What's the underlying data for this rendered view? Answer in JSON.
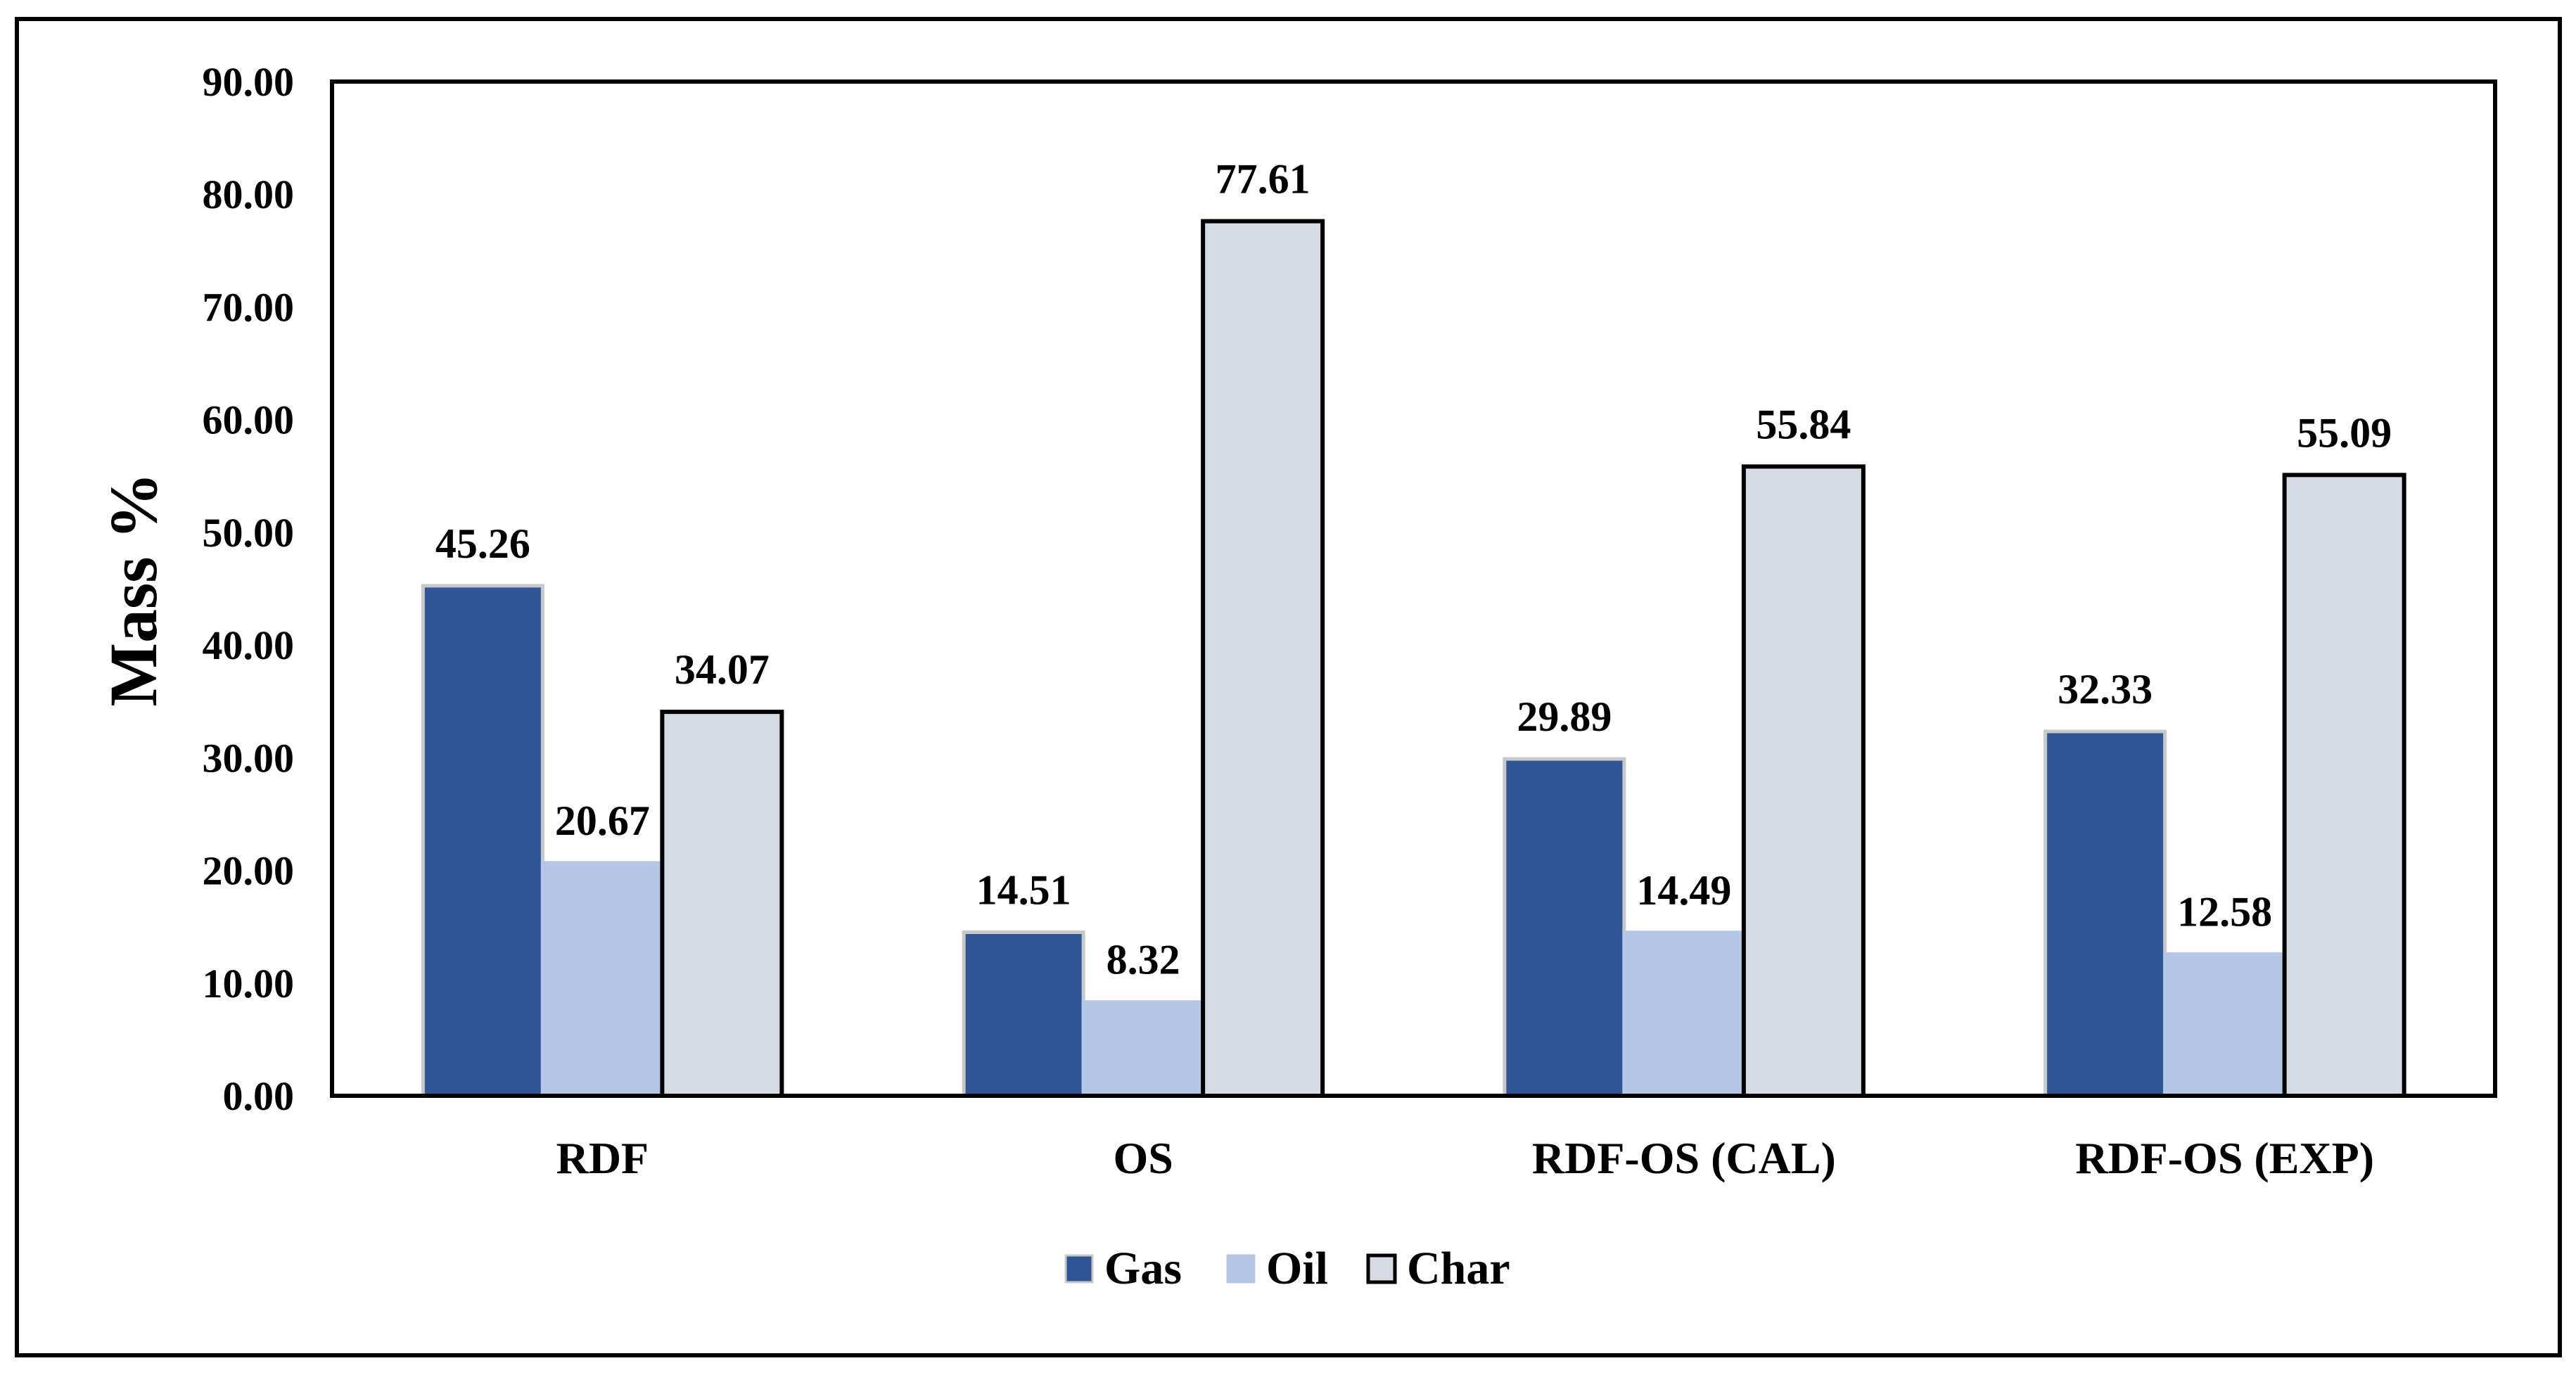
{
  "chart_data": {
    "type": "bar",
    "ylabel": "Mass %",
    "xlabel": "",
    "ylim": [
      0,
      90
    ],
    "ytick_step": 10,
    "ytick_labels": [
      "0.00",
      "10.00",
      "20.00",
      "30.00",
      "40.00",
      "50.00",
      "60.00",
      "70.00",
      "80.00",
      "90.00"
    ],
    "categories": [
      "RDF",
      "OS",
      "RDF-OS  (CAL)",
      "RDF-OS (EXP)"
    ],
    "series": [
      {
        "name": "Gas",
        "values": [
          45.26,
          14.51,
          29.89,
          32.33
        ],
        "labels": [
          "45.26",
          "14.51",
          "29.89",
          "32.33"
        ],
        "color": "#2f5597",
        "stroke": "#c8c8c8"
      },
      {
        "name": "Oil",
        "values": [
          20.67,
          8.32,
          14.49,
          12.58
        ],
        "labels": [
          "20.67",
          "8.32",
          "14.49",
          "12.58"
        ],
        "color": "#b4c7e7",
        "stroke": "#b4c7e7"
      },
      {
        "name": "Char",
        "values": [
          34.07,
          77.61,
          55.84,
          55.09
        ],
        "labels": [
          "34.07",
          "77.61",
          "55.84",
          "55.09"
        ],
        "color": "#d6dce5",
        "stroke": "#000000"
      }
    ],
    "grid": false,
    "legend_position": "bottom"
  }
}
